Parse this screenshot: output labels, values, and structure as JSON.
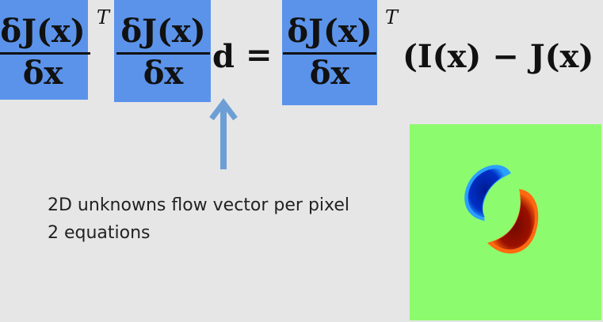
{
  "equation": {
    "numerator": "δJ(x)",
    "denominator": "δx",
    "transpose": "T",
    "unknown": "d",
    "equals": "=",
    "rhs_term": "(I(x) − J(x)"
  },
  "caption": {
    "line1": "2D unknowns flow vector per pixel",
    "line2": "2 equations"
  },
  "colors": {
    "highlight": "#5b93ea",
    "arrow": "#6d9fd6",
    "flow_background": "#8dfb6e",
    "flow_blue": "#0024a8",
    "flow_red": "#7a0a00"
  }
}
